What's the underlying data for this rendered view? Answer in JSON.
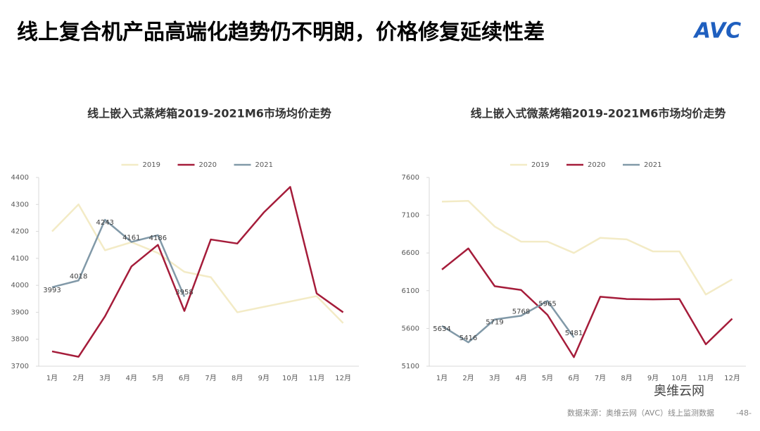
{
  "slide": {
    "title": "线上复合机产品高端化趋势仍不明朗，价格修复延续性差",
    "logo": "AVC",
    "source": "数据来源：奥维云网（AVC）线上监测数据",
    "page": "-48-",
    "wechat": "奥维云网"
  },
  "chart_data": [
    {
      "type": "line",
      "title": "线上嵌入式蒸烤箱2019-2021M6市场均价走势",
      "categories": [
        "1月",
        "2月",
        "3月",
        "4月",
        "5月",
        "6月",
        "7月",
        "8月",
        "9月",
        "10月",
        "11月",
        "12月"
      ],
      "series": [
        {
          "name": "2019",
          "color": "#f3ebc6",
          "values": [
            4200,
            4300,
            4130,
            4160,
            4120,
            4050,
            4030,
            3900,
            3920,
            3940,
            3960,
            3860
          ]
        },
        {
          "name": "2020",
          "color": "#a51c3a",
          "values": [
            3755,
            3735,
            3885,
            4070,
            4150,
            3905,
            4170,
            4155,
            4270,
            4365,
            3970,
            3900
          ]
        },
        {
          "name": "2021",
          "color": "#8199a8",
          "labels": true,
          "values": [
            3993,
            4018,
            4243,
            4161,
            4186,
            3958,
            null,
            null,
            null,
            null,
            null,
            null
          ]
        }
      ],
      "ylim": [
        3700,
        4400
      ],
      "yticks": [
        3700,
        3800,
        3900,
        4000,
        4100,
        4200,
        4300,
        4400
      ],
      "legend": "top"
    },
    {
      "type": "line",
      "title": "线上嵌入式微蒸烤箱2019-2021M6市场均价走势",
      "categories": [
        "1月",
        "2月",
        "3月",
        "4月",
        "5月",
        "6月",
        "7月",
        "8月",
        "9月",
        "10月",
        "11月",
        "12月"
      ],
      "series": [
        {
          "name": "2019",
          "color": "#f3ebc6",
          "values": [
            7280,
            7290,
            6950,
            6750,
            6750,
            6600,
            6800,
            6780,
            6620,
            6620,
            6050,
            6250
          ]
        },
        {
          "name": "2020",
          "color": "#a51c3a",
          "values": [
            6380,
            6660,
            6160,
            6110,
            5780,
            5220,
            6020,
            5990,
            5985,
            5990,
            5390,
            5730
          ]
        },
        {
          "name": "2021",
          "color": "#8199a8",
          "labels": true,
          "values": [
            5634,
            5416,
            5719,
            5768,
            5965,
            5481,
            null,
            null,
            null,
            null,
            null,
            null
          ]
        }
      ],
      "ylim": [
        5100,
        7600
      ],
      "yticks": [
        5100,
        5600,
        6100,
        6600,
        7100,
        7600
      ],
      "legend": "top"
    }
  ]
}
